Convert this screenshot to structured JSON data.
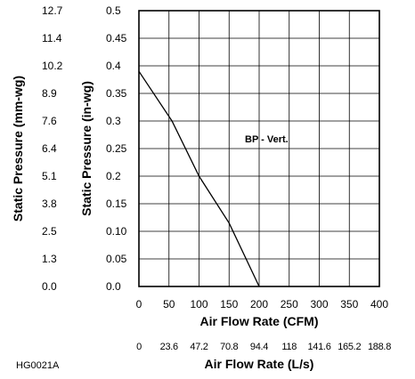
{
  "chart_data": {
    "type": "line",
    "title": "",
    "series": [
      {
        "name": "BP - Vert.",
        "x": [
          0,
          55,
          100,
          150,
          200
        ],
        "y": [
          0.39,
          0.3,
          0.2,
          0.115,
          0.0
        ]
      }
    ],
    "annotation": "BP - Vert.",
    "x_axis": {
      "label": "Air Flow Rate (CFM)",
      "range": [
        0,
        400
      ],
      "ticks": [
        0,
        50,
        100,
        150,
        200,
        250,
        300,
        350,
        400
      ],
      "tick_labels": [
        "0",
        "50",
        "100",
        "150",
        "200",
        "250",
        "300",
        "350",
        "400"
      ]
    },
    "x_axis_secondary": {
      "label": "Air Flow Rate (L/s)",
      "tick_labels": [
        "0",
        "23.6",
        "47.2",
        "70.8",
        "94.4",
        "118",
        "141.6",
        "165.2",
        "188.8"
      ]
    },
    "y_axis": {
      "label": "Static Pressure (in-wg)",
      "range": [
        0,
        0.5
      ],
      "ticks": [
        0,
        0.05,
        0.1,
        0.15,
        0.2,
        0.25,
        0.3,
        0.35,
        0.4,
        0.45,
        0.5
      ],
      "tick_labels": [
        "0.0",
        "0.05",
        "0.10",
        "0.15",
        "0.2",
        "0.25",
        "0.3",
        "0.35",
        "0.4",
        "0.45",
        "0.5"
      ]
    },
    "y_axis_secondary": {
      "label": "Static Pressure (mm-wg)",
      "tick_labels": [
        "0.0",
        "1.3",
        "2.5",
        "3.8",
        "5.1",
        "6.4",
        "7.6",
        "8.9",
        "10.2",
        "11.4",
        "12.7"
      ]
    },
    "grid": true,
    "legend": "none"
  },
  "figure_code": "HG0021A",
  "colors": {
    "line": "#000000",
    "grid": "#000000",
    "background": "#ffffff"
  }
}
